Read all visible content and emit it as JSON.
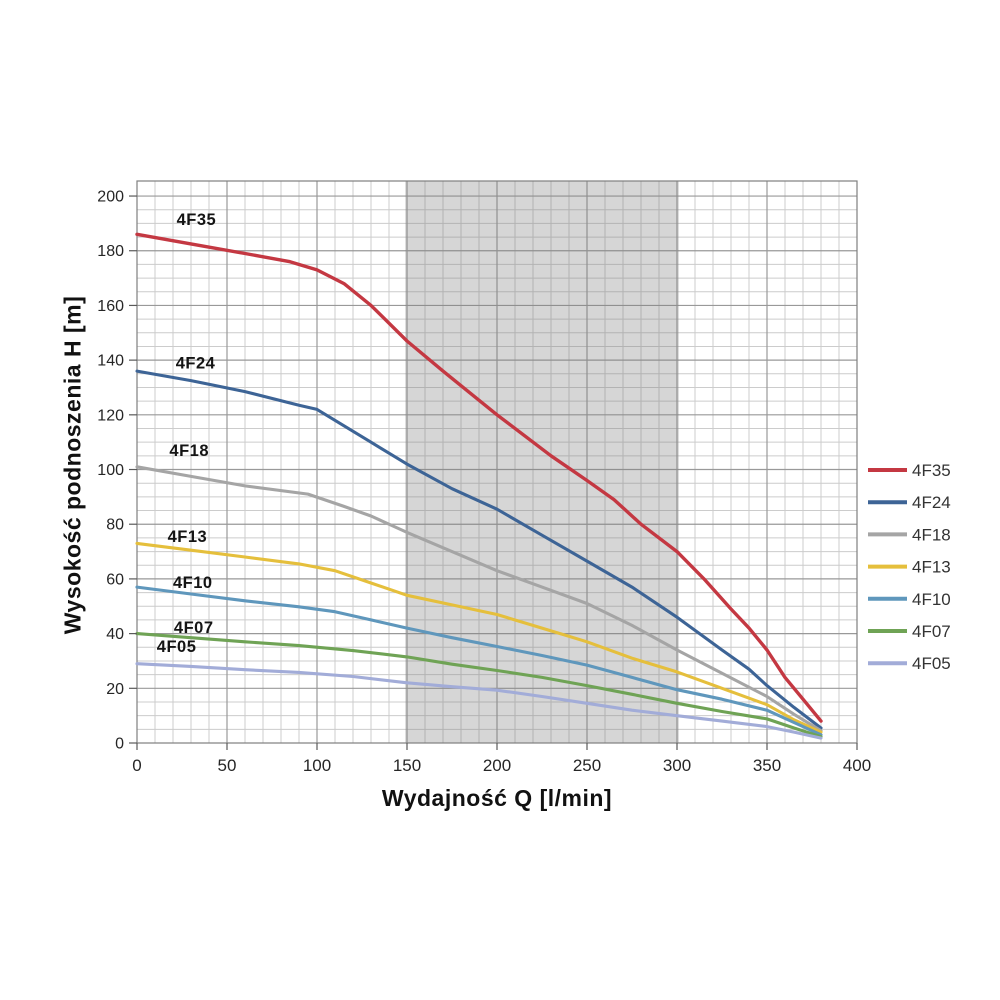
{
  "chart_data": {
    "type": "line",
    "title": "",
    "xlabel": "Wydajność Q [l/min]",
    "ylabel": "Wysokość podnoszenia H [m]",
    "xlim": [
      0,
      400
    ],
    "ylim": [
      0,
      205.5
    ],
    "x_ticks": [
      0,
      50,
      100,
      150,
      200,
      250,
      300,
      350,
      400
    ],
    "y_ticks": [
      0,
      20,
      40,
      60,
      80,
      100,
      120,
      140,
      160,
      180,
      200
    ],
    "x_minor_step": 10,
    "y_minor_step": 5,
    "grid": true,
    "legend_position": "right",
    "background": "#ffffff",
    "shaded_band": {
      "from": 149,
      "to": 301,
      "color": "#808080",
      "opacity": 0.32
    },
    "colors": {
      "grid_minor": "#cccccc",
      "grid_major": "#999999",
      "frame": "#7f7f7f",
      "tick": "#595959",
      "tick_label": "#262626",
      "curve_label": "#141414",
      "legend_label": "#333333"
    },
    "series": [
      {
        "name": "4F35",
        "color": "#c43842",
        "label_q": 22,
        "label_h": 189.4,
        "points": [
          [
            0,
            186
          ],
          [
            30,
            182.5
          ],
          [
            60,
            179
          ],
          [
            85,
            176
          ],
          [
            100,
            173
          ],
          [
            115,
            168
          ],
          [
            130,
            160
          ],
          [
            150,
            147
          ],
          [
            170,
            136
          ],
          [
            200,
            120
          ],
          [
            230,
            105
          ],
          [
            250,
            96
          ],
          [
            265,
            89
          ],
          [
            280,
            80
          ],
          [
            300,
            70
          ],
          [
            315,
            60
          ],
          [
            330,
            49
          ],
          [
            340,
            42
          ],
          [
            350,
            34
          ],
          [
            360,
            24
          ],
          [
            370,
            16
          ],
          [
            380,
            8
          ]
        ]
      },
      {
        "name": "4F24",
        "color": "#3d6496",
        "label_q": 21.5,
        "label_h": 137,
        "points": [
          [
            0,
            136
          ],
          [
            30,
            132.5
          ],
          [
            60,
            128.5
          ],
          [
            90,
            123.5
          ],
          [
            100,
            122
          ],
          [
            115,
            116
          ],
          [
            130,
            110
          ],
          [
            150,
            102
          ],
          [
            175,
            93
          ],
          [
            200,
            85.5
          ],
          [
            225,
            76
          ],
          [
            250,
            66.5
          ],
          [
            275,
            57
          ],
          [
            300,
            46
          ],
          [
            325,
            34
          ],
          [
            340,
            27
          ],
          [
            350,
            21
          ],
          [
            365,
            13
          ],
          [
            380,
            5.5
          ]
        ]
      },
      {
        "name": "4F18",
        "color": "#a5a5a5",
        "label_q": 18,
        "label_h": 105,
        "points": [
          [
            0,
            101
          ],
          [
            30,
            97.5
          ],
          [
            60,
            94
          ],
          [
            95,
            91
          ],
          [
            115,
            86.5
          ],
          [
            130,
            83
          ],
          [
            150,
            77
          ],
          [
            175,
            70
          ],
          [
            200,
            63
          ],
          [
            225,
            57
          ],
          [
            250,
            51
          ],
          [
            275,
            43
          ],
          [
            300,
            34
          ],
          [
            325,
            25.5
          ],
          [
            350,
            17
          ],
          [
            365,
            10.5
          ],
          [
            380,
            4.5
          ]
        ]
      },
      {
        "name": "4F13",
        "color": "#e5bf3c",
        "label_q": 17,
        "label_h": 73.5,
        "points": [
          [
            0,
            73
          ],
          [
            30,
            70.5
          ],
          [
            60,
            68
          ],
          [
            90,
            65.5
          ],
          [
            110,
            63
          ],
          [
            130,
            58.5
          ],
          [
            150,
            54
          ],
          [
            175,
            50.5
          ],
          [
            200,
            47
          ],
          [
            225,
            42
          ],
          [
            250,
            37
          ],
          [
            275,
            31
          ],
          [
            300,
            26
          ],
          [
            325,
            20
          ],
          [
            350,
            14
          ],
          [
            365,
            8.5
          ],
          [
            380,
            4
          ]
        ]
      },
      {
        "name": "4F10",
        "color": "#5f97bc",
        "label_q": 20,
        "label_h": 56.7,
        "points": [
          [
            0,
            57
          ],
          [
            30,
            54.5
          ],
          [
            60,
            52
          ],
          [
            90,
            49.8
          ],
          [
            110,
            48
          ],
          [
            130,
            45
          ],
          [
            150,
            42
          ],
          [
            175,
            38.5
          ],
          [
            200,
            35.3
          ],
          [
            225,
            32
          ],
          [
            250,
            28.5
          ],
          [
            275,
            24
          ],
          [
            300,
            19.5
          ],
          [
            325,
            16
          ],
          [
            350,
            12
          ],
          [
            365,
            7.5
          ],
          [
            380,
            3
          ]
        ]
      },
      {
        "name": "4F07",
        "color": "#6fa355",
        "label_q": 20.5,
        "label_h": 40.3,
        "points": [
          [
            0,
            40
          ],
          [
            30,
            38.5
          ],
          [
            60,
            37
          ],
          [
            90,
            35.6
          ],
          [
            120,
            33.8
          ],
          [
            150,
            31.5
          ],
          [
            175,
            28.8
          ],
          [
            200,
            26.5
          ],
          [
            225,
            24
          ],
          [
            250,
            21
          ],
          [
            275,
            17.8
          ],
          [
            300,
            14.5
          ],
          [
            325,
            11.5
          ],
          [
            350,
            8.8
          ],
          [
            365,
            5.5
          ],
          [
            380,
            2.3
          ]
        ]
      },
      {
        "name": "4F05",
        "color": "#a2acd8",
        "label_q": 11,
        "label_h": 33.3,
        "points": [
          [
            0,
            29
          ],
          [
            30,
            28
          ],
          [
            60,
            26.8
          ],
          [
            90,
            25.8
          ],
          [
            120,
            24.3
          ],
          [
            150,
            22
          ],
          [
            175,
            20.6
          ],
          [
            200,
            19.3
          ],
          [
            225,
            17
          ],
          [
            250,
            14.5
          ],
          [
            275,
            12
          ],
          [
            300,
            10
          ],
          [
            325,
            8
          ],
          [
            350,
            6
          ],
          [
            365,
            4
          ],
          [
            380,
            1.8
          ]
        ]
      }
    ]
  }
}
